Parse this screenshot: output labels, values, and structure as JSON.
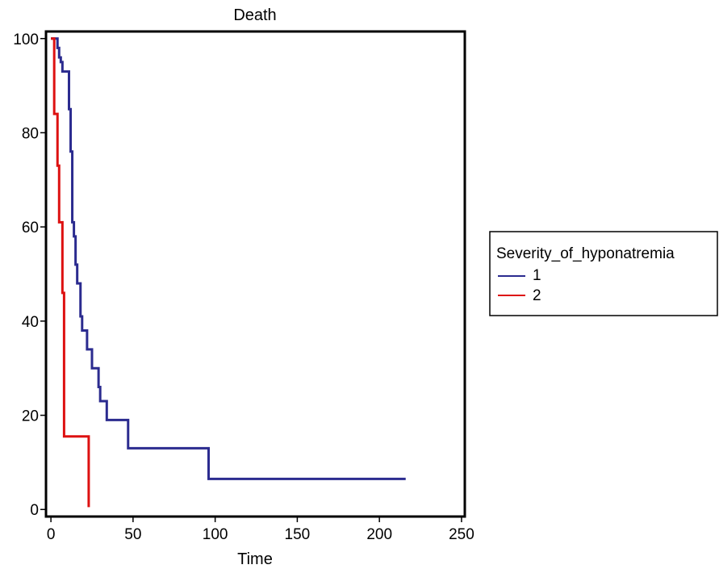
{
  "chart_data": {
    "type": "line",
    "step": true,
    "title": "Death",
    "xlabel": "Time",
    "ylabel": "",
    "xlim": [
      -3,
      252
    ],
    "ylim": [
      -1.5,
      101.5
    ],
    "xticks": [
      0,
      50,
      100,
      150,
      200,
      250
    ],
    "yticks": [
      0,
      20,
      40,
      60,
      80,
      100
    ],
    "grid": false,
    "legend": {
      "title": "Severity_of_hyponatremia",
      "placement": "right"
    },
    "series": [
      {
        "name": "1",
        "color": "#2b2b8f",
        "x": [
          0,
          3,
          4,
          5,
          6,
          7,
          10,
          11,
          12,
          13,
          14,
          15,
          16,
          18,
          19,
          22,
          25,
          29,
          30,
          34,
          47,
          96,
          216
        ],
        "y": [
          100,
          100,
          98,
          96,
          95,
          93,
          93,
          85,
          76,
          61,
          58,
          52,
          48,
          41,
          38,
          34,
          30,
          26,
          23,
          19,
          13,
          6.5,
          6.5
        ]
      },
      {
        "name": "2",
        "color": "#dd1111",
        "x": [
          0,
          1,
          2,
          4,
          5,
          6,
          7,
          8,
          23,
          23
        ],
        "y": [
          100,
          100,
          84,
          73,
          61,
          61,
          46,
          15.5,
          15.5,
          0.5
        ]
      }
    ]
  }
}
